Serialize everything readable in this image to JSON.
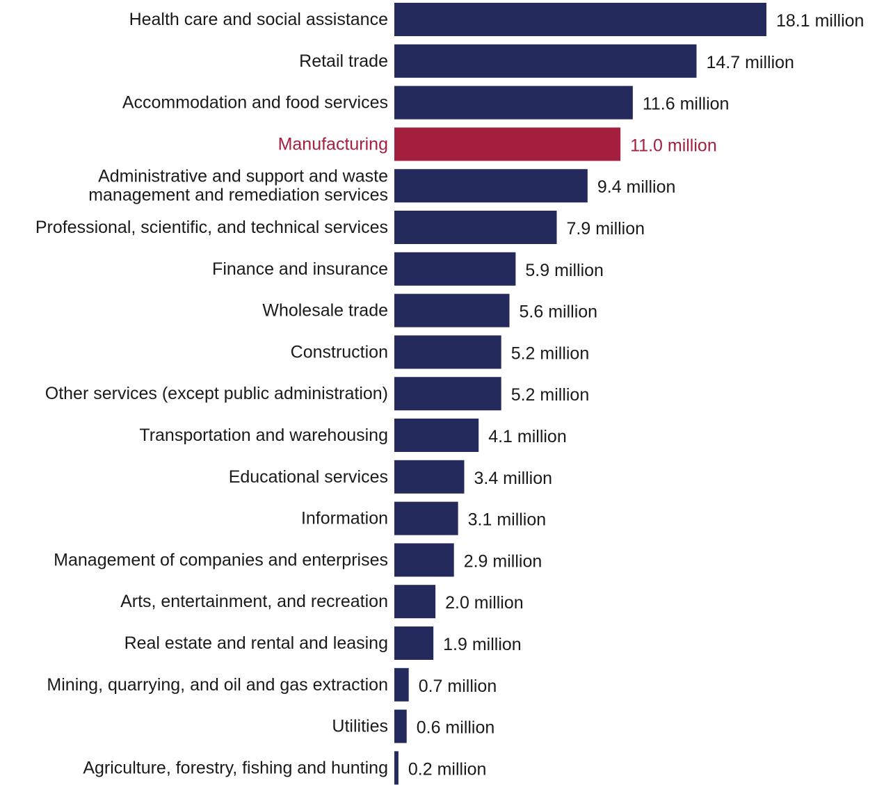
{
  "chart_data": {
    "type": "bar",
    "orientation": "horizontal",
    "title": "",
    "xlabel": "",
    "ylabel": "",
    "unit_suffix": " million",
    "xlim": [
      0,
      18.1
    ],
    "grid": false,
    "legend": "none",
    "colors": {
      "default": "#252a5c",
      "highlight": "#a51f3e",
      "label": "#1a1a1a"
    },
    "highlight_category": "Manufacturing",
    "categories": [
      "Health care and social assistance",
      "Retail trade",
      "Accommodation and food services",
      "Manufacturing",
      "Administrative and support and waste management and remediation services",
      "Professional, scientific, and technical services",
      "Finance and insurance",
      "Wholesale trade",
      "Construction",
      "Other services (except public administration)",
      "Transportation and warehousing",
      "Educational services",
      "Information",
      "Management of companies and enterprises",
      "Arts, entertainment, and recreation",
      "Real estate and rental and leasing",
      "Mining, quarrying, and oil and gas extraction",
      "Utilities",
      "Agriculture, forestry, fishing and hunting"
    ],
    "category_label_lines": [
      [
        "Health care and social assistance"
      ],
      [
        "Retail trade"
      ],
      [
        "Accommodation and food services"
      ],
      [
        "Manufacturing"
      ],
      [
        "Administrative and support and waste",
        "management and remediation services"
      ],
      [
        "Professional, scientific, and technical services"
      ],
      [
        "Finance and insurance"
      ],
      [
        "Wholesale trade"
      ],
      [
        "Construction"
      ],
      [
        "Other services (except public administration)"
      ],
      [
        "Transportation and warehousing"
      ],
      [
        "Educational services"
      ],
      [
        "Information"
      ],
      [
        "Management of companies and enterprises"
      ],
      [
        "Arts, entertainment, and recreation"
      ],
      [
        "Real estate and rental and leasing"
      ],
      [
        "Mining, quarrying, and oil and gas extraction"
      ],
      [
        "Utilities"
      ],
      [
        "Agriculture, forestry, fishing and hunting"
      ]
    ],
    "values": [
      18.1,
      14.7,
      11.6,
      11.0,
      9.4,
      7.9,
      5.9,
      5.6,
      5.2,
      5.2,
      4.1,
      3.4,
      3.1,
      2.9,
      2.0,
      1.9,
      0.7,
      0.6,
      0.2
    ],
    "value_labels": [
      "18.1 million",
      "14.7 million",
      "11.6 million",
      "11.0 million",
      "9.4 million",
      "7.9 million",
      "5.9 million",
      "5.6 million",
      "5.2 million",
      "5.2 million",
      "4.1 million",
      "3.4 million",
      "3.1 million",
      "2.9 million",
      "2.0 million",
      "1.9 million",
      "0.7 million",
      "0.6 million",
      "0.2 million"
    ]
  }
}
